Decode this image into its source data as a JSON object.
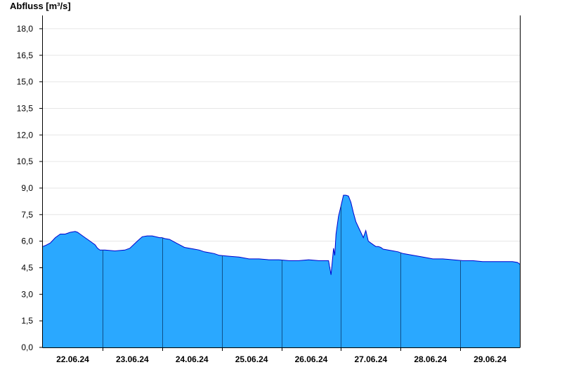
{
  "chart_data": {
    "type": "area",
    "title": "",
    "ylabel": "Abfluss [m³/s]",
    "xlabel": "",
    "ylim": [
      0,
      18.75
    ],
    "xlim": [
      "21.06.24 15:00",
      "29.06.24 15:00"
    ],
    "grid": true,
    "y_ticks": [
      "0,0",
      "1,5",
      "3,0",
      "4,5",
      "6,0",
      "7,5",
      "9,0",
      "10,5",
      "12,0",
      "13,5",
      "15,0",
      "16,5",
      "18,0"
    ],
    "x_ticks": [
      "22.06.24",
      "23.06.24",
      "24.06.24",
      "25.06.24",
      "26.06.24",
      "27.06.24",
      "28.06.24",
      "29.06.24"
    ],
    "day_divider_times": [
      "22.06.24 15:00",
      "23.06.24 15:00",
      "24.06.24 15:00",
      "25.06.24 15:00",
      "26.06.24 15:00",
      "27.06.24 15:00",
      "28.06.24 15:00"
    ],
    "colors": {
      "fill": "#2aa8ff",
      "line": "#0000cc",
      "divider": "#10508a"
    },
    "series": [
      {
        "x": [
          "21.06.24 15:00",
          "21.06.24 16:00",
          "21.06.24 18:00",
          "21.06.24 20:00",
          "21.06.24 22:00",
          "22.06.24 00:00",
          "22.06.24 02:00",
          "22.06.24 04:00",
          "22.06.24 05:00",
          "22.06.24 06:00",
          "22.06.24 08:00",
          "22.06.24 09:00",
          "22.06.24 10:00",
          "22.06.24 12:00",
          "22.06.24 13:00",
          "22.06.24 14:00",
          "22.06.24 16:00",
          "22.06.24 20:00",
          "23.06.24 00:00",
          "23.06.24 02:00",
          "23.06.24 05:00",
          "23.06.24 07:00",
          "23.06.24 09:00",
          "23.06.24 11:00",
          "23.06.24 14:00",
          "23.06.24 15:00",
          "23.06.24 16:00",
          "23.06.24 18:00",
          "23.06.24 20:00",
          "23.06.24 22:00",
          "24.06.24 00:00",
          "24.06.24 02:00",
          "24.06.24 04:00",
          "24.06.24 06:00",
          "24.06.24 08:00",
          "24.06.24 10:00",
          "24.06.24 12:00",
          "24.06.24 14:00",
          "24.06.24 18:00",
          "24.06.24 22:00",
          "25.06.24 02:00",
          "25.06.24 06:00",
          "25.06.24 10:00",
          "25.06.24 14:00",
          "25.06.24 18:00",
          "25.06.24 22:00",
          "26.06.24 02:00",
          "26.06.24 06:00",
          "26.06.24 10:00",
          "26.06.24 11:00",
          "26.06.24 12:00",
          "26.06.24 12:30",
          "26.06.24 13:00",
          "26.06.24 14:00",
          "26.06.24 15:00",
          "26.06.24 16:00",
          "26.06.24 17:00",
          "26.06.24 18:00",
          "26.06.24 19:00",
          "26.06.24 20:00",
          "26.06.24 21:00",
          "26.06.24 22:00",
          "27.06.24 00:00",
          "27.06.24 01:00",
          "27.06.24 02:00",
          "27.06.24 03:00",
          "27.06.24 04:00",
          "27.06.24 05:00",
          "27.06.24 06:00",
          "27.06.24 07:00",
          "27.06.24 08:00",
          "27.06.24 10:00",
          "27.06.24 12:00",
          "27.06.24 14:00",
          "27.06.24 16:00",
          "27.06.24 20:00",
          "28.06.24 00:00",
          "28.06.24 04:00",
          "28.06.24 08:00",
          "28.06.24 12:00",
          "28.06.24 16:00",
          "28.06.24 20:00",
          "29.06.24 00:00",
          "29.06.24 04:00",
          "29.06.24 08:00",
          "29.06.24 12:00",
          "29.06.24 14:00",
          "29.06.24 15:00"
        ],
        "values": [
          5.7,
          5.75,
          5.9,
          6.2,
          6.4,
          6.4,
          6.5,
          6.55,
          6.5,
          6.4,
          6.2,
          6.1,
          6.0,
          5.8,
          5.6,
          5.5,
          5.5,
          5.45,
          5.5,
          5.6,
          6.0,
          6.25,
          6.3,
          6.3,
          6.2,
          6.2,
          6.15,
          6.1,
          5.95,
          5.8,
          5.65,
          5.6,
          5.55,
          5.5,
          5.4,
          5.35,
          5.3,
          5.2,
          5.15,
          5.1,
          5.0,
          5.0,
          4.95,
          4.95,
          4.9,
          4.9,
          4.95,
          4.9,
          4.9,
          4.1,
          5.6,
          5.2,
          6.4,
          7.4,
          8.0,
          8.6,
          8.6,
          8.55,
          8.2,
          7.6,
          7.1,
          6.8,
          6.2,
          6.6,
          6.0,
          5.9,
          5.8,
          5.7,
          5.7,
          5.65,
          5.55,
          5.5,
          5.45,
          5.4,
          5.3,
          5.2,
          5.1,
          5.0,
          5.0,
          4.95,
          4.9,
          4.9,
          4.85,
          4.85,
          4.85,
          4.85,
          4.8,
          4.7
        ]
      }
    ]
  }
}
